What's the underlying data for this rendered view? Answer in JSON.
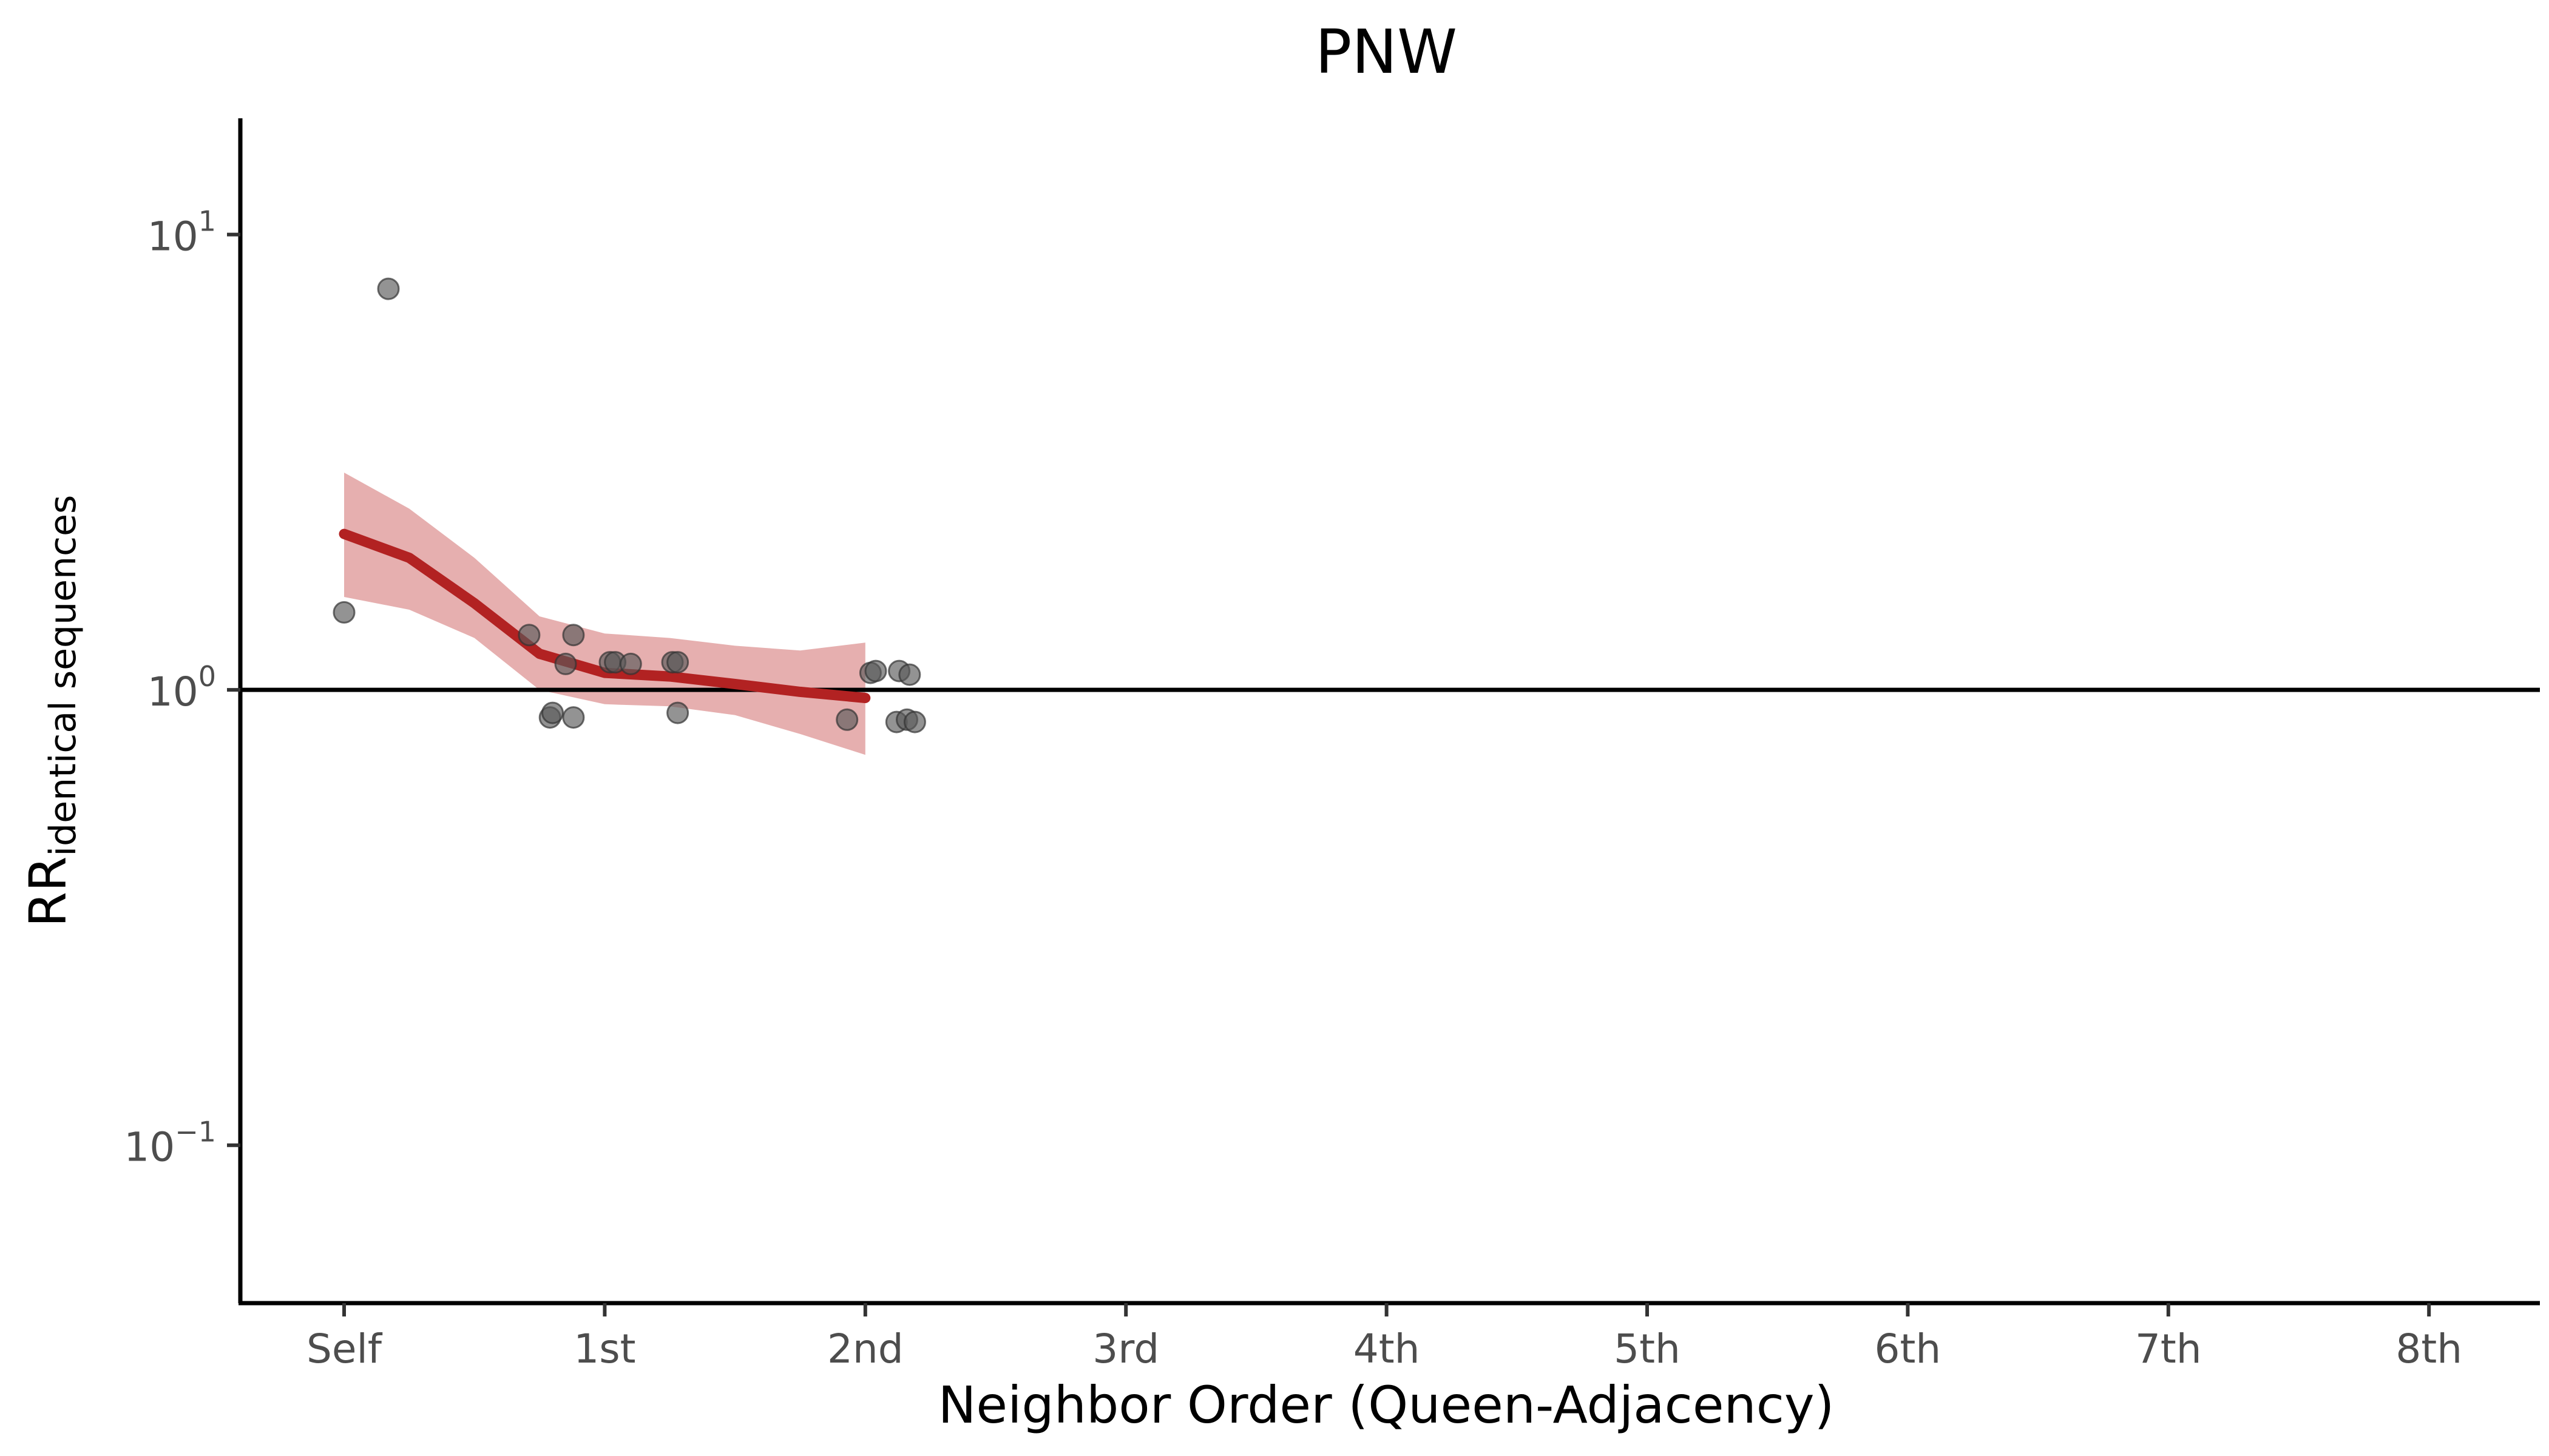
{
  "chart_data": {
    "type": "scatter",
    "title": "PNW",
    "xlabel": "Neighbor Order (Queen-Adjacency)",
    "ylabel_main": "RR",
    "ylabel_sub": "identical sequences",
    "x_categories": [
      "Self",
      "1st",
      "2nd",
      "3rd",
      "4th",
      "5th",
      "6th",
      "7th",
      "8th"
    ],
    "xlim": [
      -0.4,
      8.3
    ],
    "y_scale": "log10",
    "ylim": [
      0.045,
      18
    ],
    "y_ticks": [
      {
        "value": 0.1,
        "base": "10",
        "exp": "−1"
      },
      {
        "value": 1,
        "base": "10",
        "exp": "0"
      },
      {
        "value": 10,
        "base": "10",
        "exp": "1"
      }
    ],
    "reference_line_y": 1,
    "points": [
      {
        "x": 0.0,
        "y": 1.48
      },
      {
        "x": 0.17,
        "y": 7.6
      },
      {
        "x": 0.71,
        "y": 1.32
      },
      {
        "x": 0.79,
        "y": 0.87
      },
      {
        "x": 0.8,
        "y": 0.89
      },
      {
        "x": 0.85,
        "y": 1.14
      },
      {
        "x": 0.88,
        "y": 1.32
      },
      {
        "x": 0.88,
        "y": 0.87
      },
      {
        "x": 1.02,
        "y": 1.15
      },
      {
        "x": 1.04,
        "y": 1.15
      },
      {
        "x": 1.1,
        "y": 1.14
      },
      {
        "x": 1.26,
        "y": 1.15
      },
      {
        "x": 1.28,
        "y": 1.15
      },
      {
        "x": 1.28,
        "y": 0.89
      },
      {
        "x": 1.93,
        "y": 0.86
      },
      {
        "x": 2.02,
        "y": 1.09
      },
      {
        "x": 2.04,
        "y": 1.1
      },
      {
        "x": 2.12,
        "y": 0.85
      },
      {
        "x": 2.13,
        "y": 1.1
      },
      {
        "x": 2.16,
        "y": 0.86
      },
      {
        "x": 2.17,
        "y": 1.08
      },
      {
        "x": 2.19,
        "y": 0.85
      }
    ],
    "smooth_line": {
      "x": [
        0,
        0.25,
        0.5,
        0.75,
        1.0,
        1.25,
        1.5,
        1.75,
        2.0
      ],
      "y": [
        2.2,
        1.95,
        1.55,
        1.2,
        1.09,
        1.07,
        1.03,
        0.99,
        0.96
      ],
      "ci_lower": [
        1.6,
        1.5,
        1.3,
        1.0,
        0.93,
        0.92,
        0.88,
        0.8,
        0.72
      ],
      "ci_upper": [
        3.0,
        2.5,
        1.95,
        1.45,
        1.33,
        1.3,
        1.25,
        1.22,
        1.27
      ]
    },
    "colors": {
      "line": "#b22222",
      "ribbon": "#e09b9b",
      "points": "#595959",
      "reference": "#000000"
    },
    "grid": false,
    "legend": "none"
  }
}
